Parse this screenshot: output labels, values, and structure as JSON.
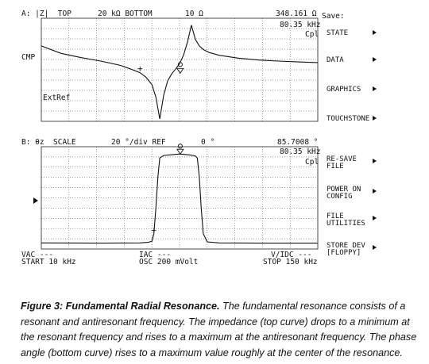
{
  "panel_a": {
    "header_left": "A: |Z|  TOP",
    "header_top": "20 kΩ BOTTOM",
    "header_bottom": "10 Ω",
    "header_marker": "348.161 Ω",
    "freq": "80.35 kHz",
    "mode": "Cpl",
    "side_label": "CMP",
    "extref": "ExtRef"
  },
  "panel_b": {
    "header_left": "B: θz  SCALE",
    "header_scale": "20 °/div REF",
    "header_ref": "0 °",
    "header_marker": "85.7008 °",
    "freq": "80.35 kHz",
    "mode": "Cpl"
  },
  "footer": {
    "vac": "VAC ---",
    "start": "START 10 kHz",
    "iac": "IAC ---",
    "osc": "OSC 200 mVolt",
    "vidc": "V/IDC ---",
    "stop": "STOP 150 kHz"
  },
  "softkeys": {
    "title": "Save:",
    "items": [
      {
        "line1": "STATE",
        "line2": ""
      },
      {
        "line1": "DATA",
        "line2": ""
      },
      {
        "line1": "GRAPHICS",
        "line2": ""
      },
      {
        "line1": "TOUCHSTONE",
        "line2": ""
      },
      {
        "line1": "RE-SAVE",
        "line2": "FILE"
      },
      {
        "line1": "POWER ON",
        "line2": "CONFIG"
      },
      {
        "line1": "FILE",
        "line2": "UTILITIES"
      },
      {
        "line1": "STORE DEV",
        "line2": "[FLOPPY]"
      }
    ]
  },
  "caption": {
    "label": "Figure 3:  Fundamental Radial Resonance.",
    "text": "  The fundamental resonance consists of a resonant and antiresonant frequency. The impedance (top curve) drops to a minimum at the resonant frequency and rises to a maximum at the antiresonant frequency.  The phase angle (bottom curve) rises to a maximum value roughly at the center of the resonance."
  },
  "chart_data": [
    {
      "type": "line",
      "title": "",
      "xlabel": "",
      "ylabel": "",
      "x_unit": "kHz",
      "xlim": [
        10,
        150
      ],
      "ylim_log_ohm": [
        10,
        20000
      ],
      "log_scale_y": true,
      "grid": true,
      "marker": {
        "x": 80.35,
        "y": 348.161
      },
      "series": [
        {
          "x": [
            10,
            20,
            30,
            40,
            50,
            55,
            60,
            63,
            66,
            68,
            70,
            72,
            74,
            76,
            78,
            80,
            82,
            84,
            86,
            88,
            90,
            92,
            95,
            100,
            110,
            120,
            130,
            140,
            150
          ],
          "y": [
            2600,
            1500,
            1100,
            850,
            620,
            480,
            360,
            260,
            150,
            60,
            12,
            70,
            200,
            330,
            470,
            700,
            1300,
            3400,
            12000,
            4200,
            2600,
            2000,
            1600,
            1300,
            1050,
            920,
            850,
            800,
            760
          ]
        }
      ]
    },
    {
      "type": "line",
      "title": "",
      "xlabel": "",
      "ylabel": "",
      "x_unit": "kHz",
      "xlim": [
        10,
        150
      ],
      "ylim_deg": [
        -100,
        100
      ],
      "grid": true,
      "marker": {
        "x": 80.35,
        "y": 85.7008
      },
      "series": [
        {
          "x": [
            10,
            40,
            60,
            64,
            66,
            67,
            68,
            69,
            70,
            72,
            75,
            80,
            85,
            88,
            89,
            90,
            91,
            92,
            94,
            100,
            120,
            150
          ],
          "y": [
            -88,
            -88.5,
            -88,
            -87,
            -85,
            -70,
            -20,
            40,
            78,
            83,
            84,
            85.7,
            84,
            82,
            78,
            40,
            -20,
            -70,
            -86,
            -88,
            -88.5,
            -88.5
          ]
        }
      ]
    }
  ]
}
